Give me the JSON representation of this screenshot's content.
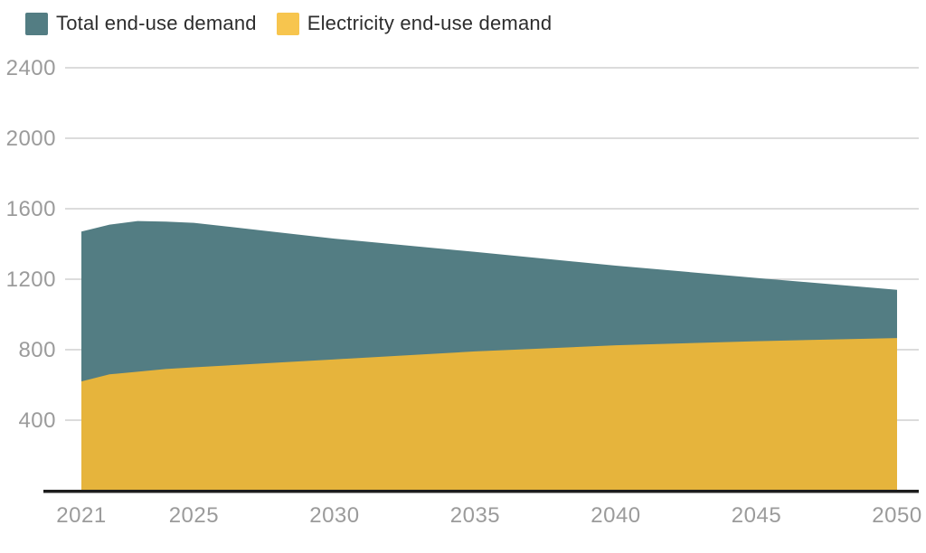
{
  "legend": {
    "items": [
      {
        "label": "Total end-use demand",
        "color": "#537d83"
      },
      {
        "label": "Electricity end-use demand",
        "color": "#f7c54e"
      }
    ]
  },
  "chart_data": {
    "type": "area",
    "mode": "overlay",
    "title": "",
    "xlabel": "",
    "ylabel": "",
    "x": [
      2021,
      2022,
      2023,
      2024,
      2025,
      2030,
      2035,
      2040,
      2045,
      2050
    ],
    "series": [
      {
        "name": "Total end-use demand",
        "color": "#537d83",
        "values": [
          1470,
          1510,
          1530,
          1527,
          1520,
          1430,
          1355,
          1277,
          1207,
          1140
        ]
      },
      {
        "name": "Electricity end-use demand",
        "color": "#e6b43c",
        "values": [
          620,
          660,
          675,
          690,
          700,
          745,
          790,
          825,
          848,
          866
        ]
      }
    ],
    "xlim": [
      2021,
      2050
    ],
    "ylim": [
      0,
      2400
    ],
    "yticks": [
      400,
      800,
      1200,
      1600,
      2000,
      2400
    ],
    "xticks": [
      2021,
      2025,
      2030,
      2035,
      2040,
      2045,
      2050
    ],
    "grid": true,
    "legend_position": "top-left"
  },
  "style": {
    "grid_color": "#c6c6c6",
    "tick_color": "#9b9b9b",
    "axis_line_color": "#1d1d1d",
    "background": "#ffffff"
  }
}
